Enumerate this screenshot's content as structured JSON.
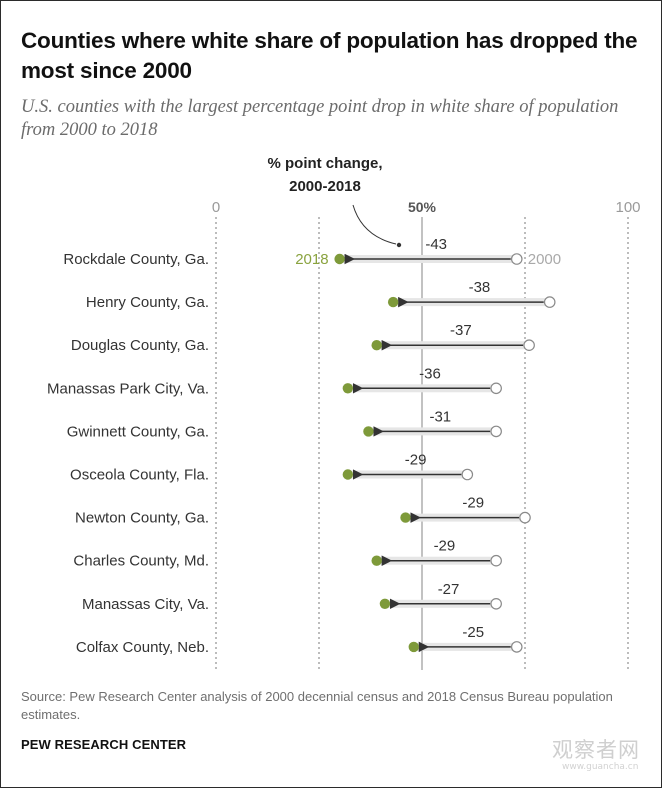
{
  "title": "Counties where white share of population has dropped the most since 2000",
  "subtitle": "U.S. counties with the largest percentage point drop in white share of population from 2000 to 2018",
  "source": "Source: Pew Research Center analysis of 2000 decennial census and 2018 Census Bureau population estimates.",
  "brand": "PEW RESEARCH CENTER",
  "watermark": {
    "text": "观察者网",
    "url": "www.guancha.cn"
  },
  "chart_data": {
    "type": "dumbbell",
    "annotation_line1": "% point change,",
    "annotation_line2": "2000-2018",
    "axis": {
      "min": 0,
      "max": 100,
      "ticks": [
        "0",
        "50%",
        "100"
      ],
      "tick_values": [
        0,
        50,
        100
      ]
    },
    "legend": {
      "start_label": "2000",
      "end_label": "2018"
    },
    "colors": {
      "start": "#ffffff",
      "end": "#7e9a3a",
      "arrow": "#333333",
      "band": "#e6e6e6",
      "legend_2018": "#8aa33f",
      "legend_2000": "#a9a9a9"
    },
    "rows": [
      {
        "label": "Rockdale County, Ga.",
        "y2000": 73,
        "y2018": 30,
        "change": "-43"
      },
      {
        "label": "Henry County, Ga.",
        "y2000": 81,
        "y2018": 43,
        "change": "-38"
      },
      {
        "label": "Douglas County, Ga.",
        "y2000": 76,
        "y2018": 39,
        "change": "-37"
      },
      {
        "label": "Manassas Park City, Va.",
        "y2000": 68,
        "y2018": 32,
        "change": "-36"
      },
      {
        "label": "Gwinnett County, Ga.",
        "y2000": 68,
        "y2018": 37,
        "change": "-31"
      },
      {
        "label": "Osceola County, Fla.",
        "y2000": 61,
        "y2018": 32,
        "change": "-29"
      },
      {
        "label": "Newton County, Ga.",
        "y2000": 75,
        "y2018": 46,
        "change": "-29"
      },
      {
        "label": "Charles County, Md.",
        "y2000": 68,
        "y2018": 39,
        "change": "-29"
      },
      {
        "label": "Manassas City, Va.",
        "y2000": 68,
        "y2018": 41,
        "change": "-27"
      },
      {
        "label": "Colfax County, Neb.",
        "y2000": 73,
        "y2018": 48,
        "change": "-25"
      }
    ]
  }
}
